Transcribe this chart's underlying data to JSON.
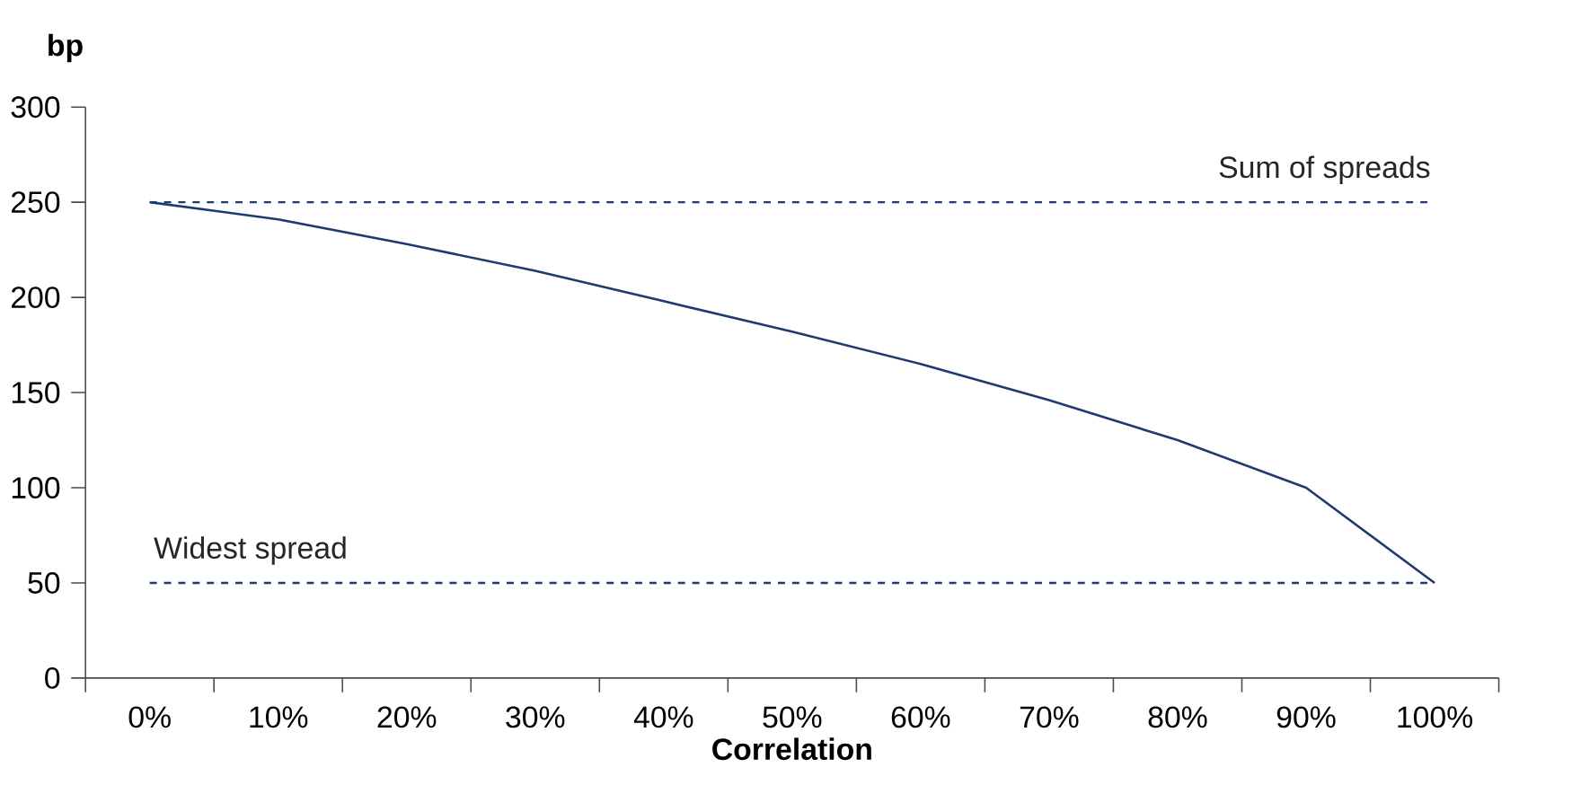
{
  "chart_data": {
    "type": "line",
    "xlabel": "Correlation",
    "ylabel": "bp",
    "categories": [
      "0%",
      "10%",
      "20%",
      "30%",
      "40%",
      "50%",
      "60%",
      "70%",
      "80%",
      "90%",
      "100%"
    ],
    "series": [
      {
        "color": "#1f3a6e",
        "values": [
          250,
          241,
          228,
          214,
          198,
          182,
          165,
          146,
          125,
          100,
          50
        ]
      }
    ],
    "ylim": [
      0,
      300
    ],
    "yticks": [
      0,
      50,
      100,
      150,
      200,
      250,
      300
    ],
    "ref_lines": [
      {
        "axis": "y",
        "value": 250,
        "label": "Sum of spreads",
        "color": "#1f3a6e",
        "line_style": "dashed"
      },
      {
        "axis": "y",
        "value": 50,
        "label": "Widest spread",
        "color": "#1f3a6e",
        "line_style": "dashed"
      }
    ],
    "grid": false,
    "marker": "none",
    "line_style": "solid"
  }
}
